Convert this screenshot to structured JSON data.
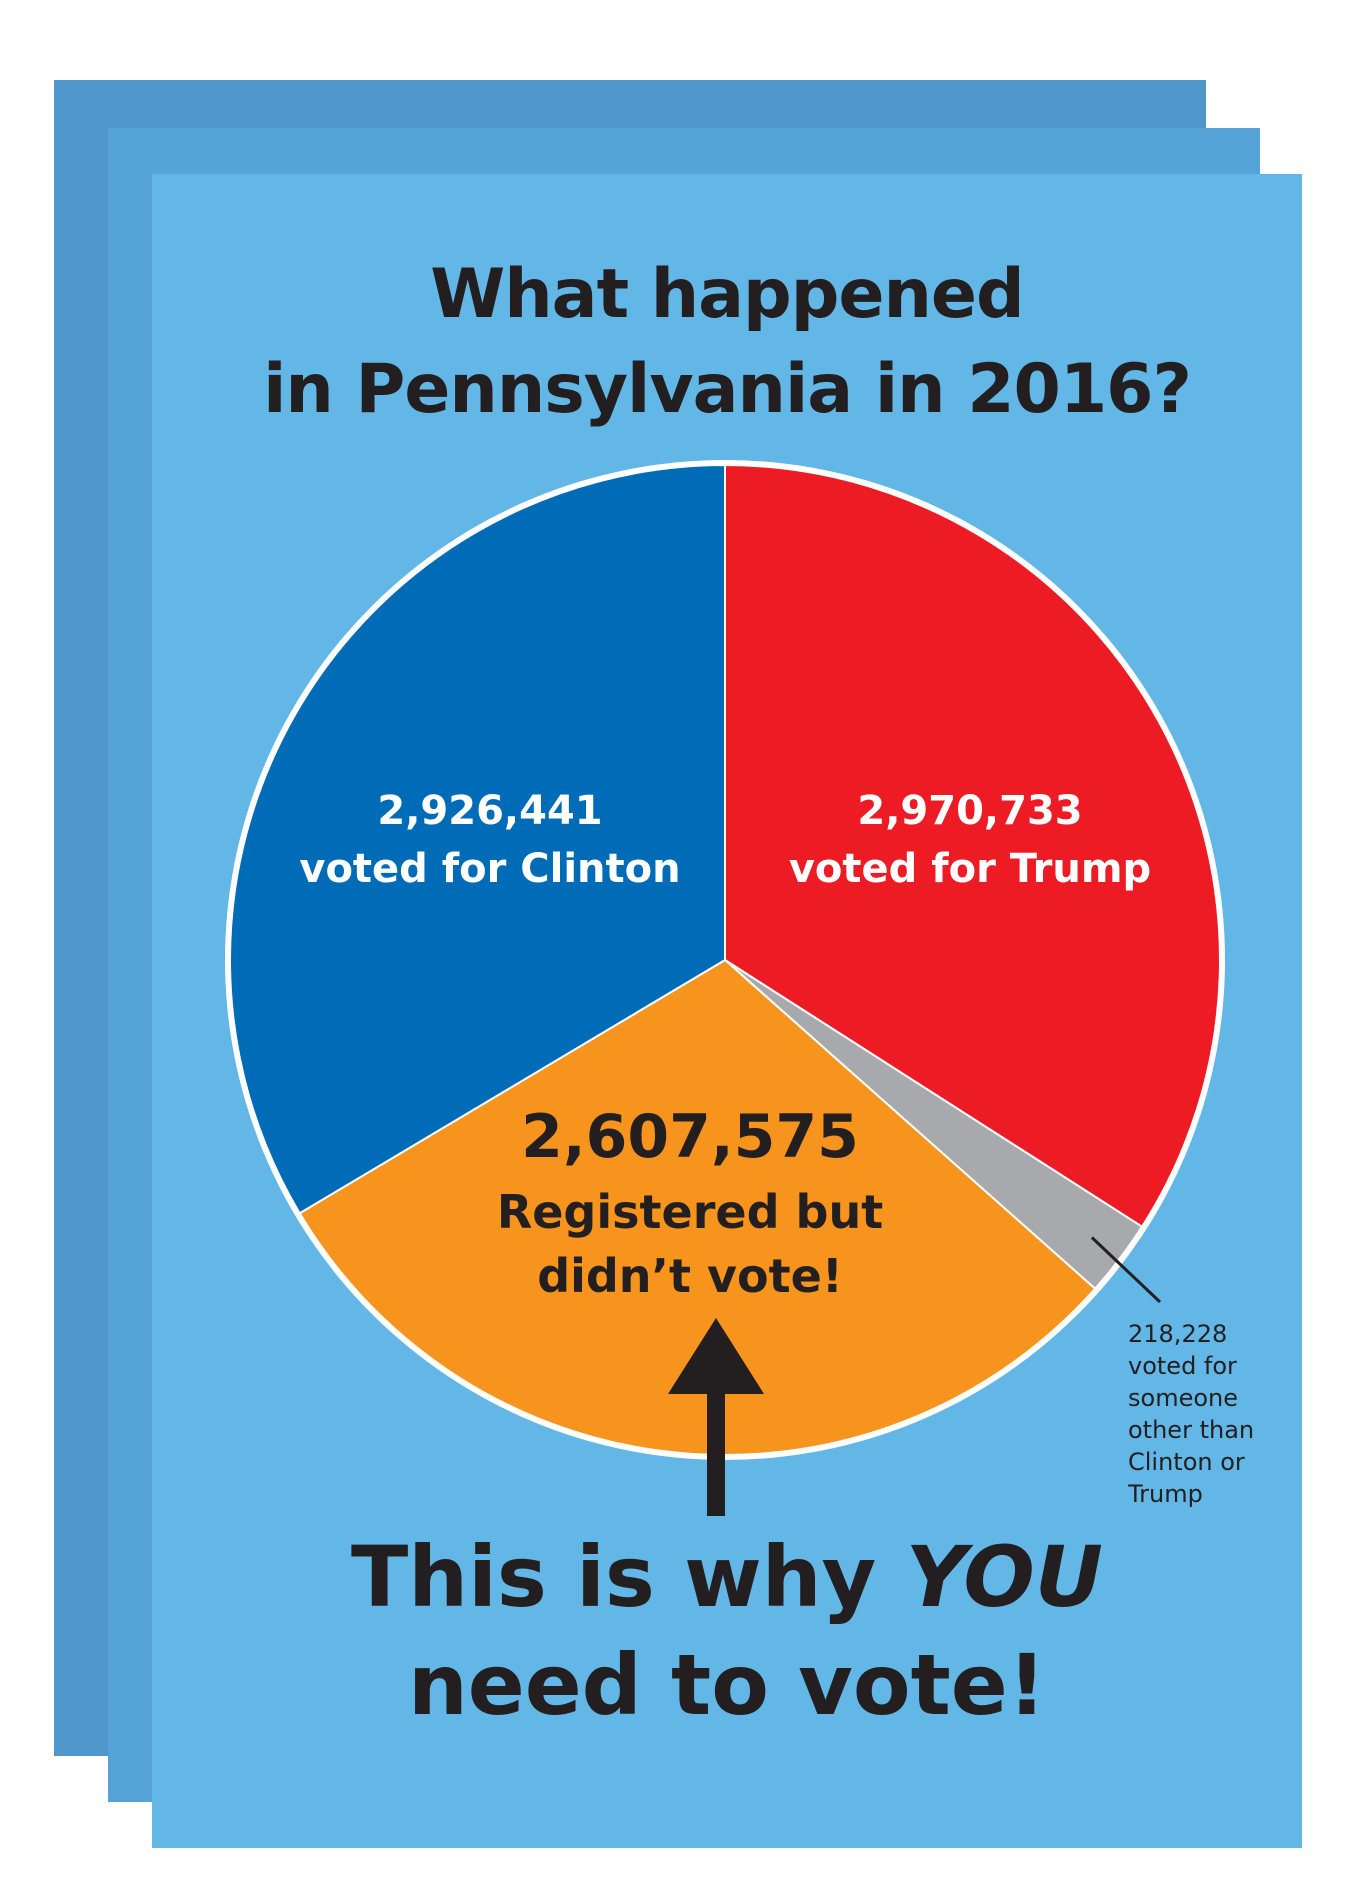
{
  "poster": {
    "title_line1": "What happened",
    "title_line2": "in Pennsylvania in 2016?",
    "cta_line1_prefix": "This is why ",
    "cta_line1_emphasis": "YOU",
    "cta_line2": "need to vote!",
    "other_note": "218,228\nvoted for\nsomeone\nother than\nClinton or\nTrump"
  },
  "colors": {
    "card_back": "#5097cc",
    "card_mid": "#56a3d8",
    "card_front": "#62b7e6",
    "clinton": "#006cb7",
    "trump": "#ed1c24",
    "other": "#a7a9ac",
    "nonvoters": "#f7941d",
    "text_dark": "#231f20"
  },
  "chart_data": {
    "type": "pie",
    "title": "What happened in Pennsylvania in 2016?",
    "slices": [
      {
        "key": "trump",
        "value": 2970733,
        "label_number": "2,970,733",
        "label_text": "voted for Trump"
      },
      {
        "key": "other",
        "value": 218228,
        "label_number": "218,228",
        "label_text": "voted for someone other than Clinton or Trump"
      },
      {
        "key": "nonvoters",
        "value": 2607575,
        "label_number": "2,607,575",
        "label_text": "Registered but didn't vote!"
      },
      {
        "key": "clinton",
        "value": 2926441,
        "label_number": "2,926,441",
        "label_text": "voted for Clinton"
      }
    ],
    "labels": {
      "clinton_number": "2,926,441",
      "clinton_text": "voted for Clinton",
      "trump_number": "2,970,733",
      "trump_text": "voted for Trump",
      "nonvoters_number": "2,607,575",
      "nonvoters_text_line1": "Registered but",
      "nonvoters_text_line2": "didn’t vote!"
    }
  }
}
